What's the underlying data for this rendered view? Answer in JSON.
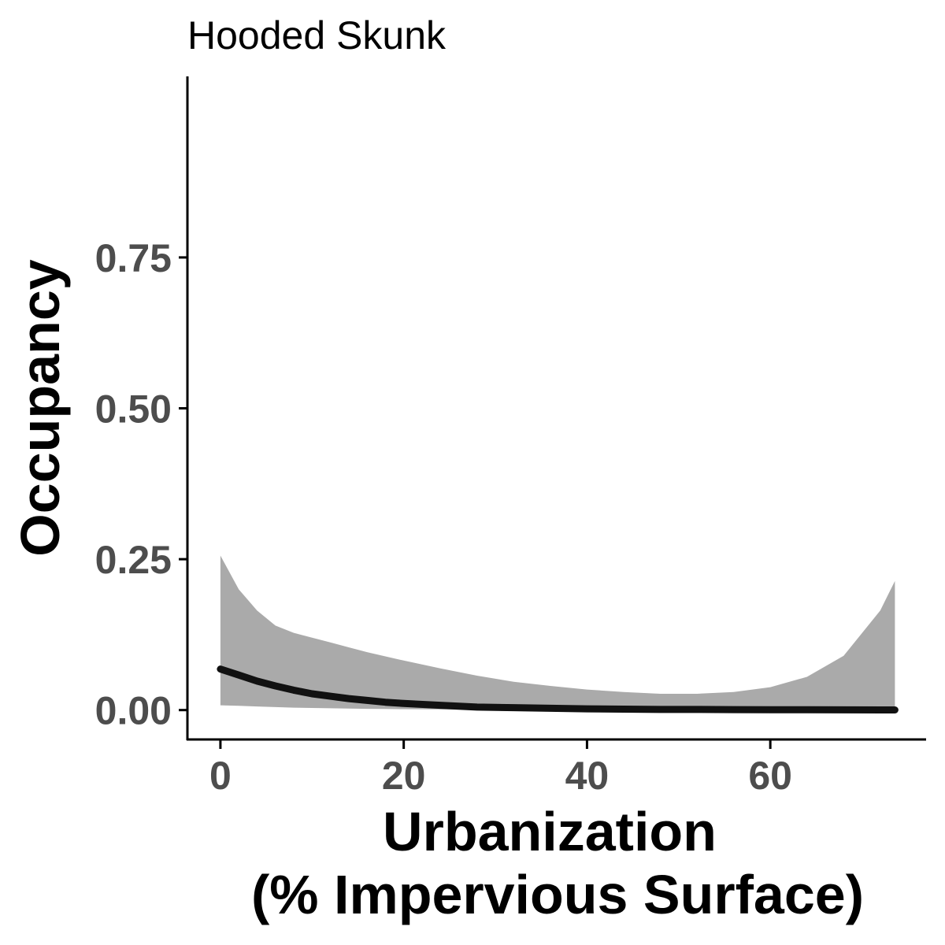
{
  "chart_data": {
    "type": "line",
    "title": "Hooded Skunk",
    "xlabel_lines": [
      "Urbanization",
      "(% Impervious Surface)"
    ],
    "ylabel": "Occupancy",
    "xlim": [
      -3.6,
      77
    ],
    "ylim": [
      -0.05,
      1.05
    ],
    "x_ticks": [
      0,
      20,
      40,
      60
    ],
    "x_tick_labels": [
      "0",
      "20",
      "40",
      "60"
    ],
    "y_ticks": [
      0,
      0.25,
      0.5,
      0.75
    ],
    "y_tick_labels": [
      "0.00",
      "0.25",
      "0.50",
      "0.75"
    ],
    "grid": false,
    "legend": "none",
    "colors": {
      "line": "#111111",
      "ribbon": "#aaaaaa",
      "axis": "#000000",
      "tick_text": "#4d4d4d"
    },
    "series": [
      {
        "x": [
          0,
          2,
          4,
          6,
          8,
          10,
          12,
          14,
          16,
          18,
          20,
          24,
          28,
          32,
          36,
          40,
          44,
          48,
          52,
          56,
          60,
          64,
          68,
          72,
          73.6
        ],
        "y": [
          0.068,
          0.058,
          0.048,
          0.04,
          0.033,
          0.027,
          0.023,
          0.019,
          0.016,
          0.013,
          0.011,
          0.008,
          0.005,
          0.004,
          0.003,
          0.002,
          0.0015,
          0.001,
          0.001,
          0.0008,
          0.0006,
          0.0005,
          0.0004,
          0.0003,
          0.0003
        ],
        "lower": [
          0.008,
          0.007,
          0.006,
          0.005,
          0.004,
          0.0035,
          0.003,
          0.0025,
          0.002,
          0.0018,
          0.0015,
          0.0012,
          0.001,
          0.0008,
          0.0006,
          0.0005,
          0.0004,
          0.0003,
          0.0003,
          0.0002,
          0.0002,
          0.0001,
          0.0001,
          0.0001,
          0.0001
        ],
        "upper": [
          0.256,
          0.2,
          0.165,
          0.14,
          0.128,
          0.12,
          0.112,
          0.104,
          0.096,
          0.089,
          0.082,
          0.069,
          0.057,
          0.047,
          0.04,
          0.034,
          0.03,
          0.027,
          0.027,
          0.03,
          0.038,
          0.055,
          0.09,
          0.165,
          0.214
        ]
      }
    ]
  }
}
